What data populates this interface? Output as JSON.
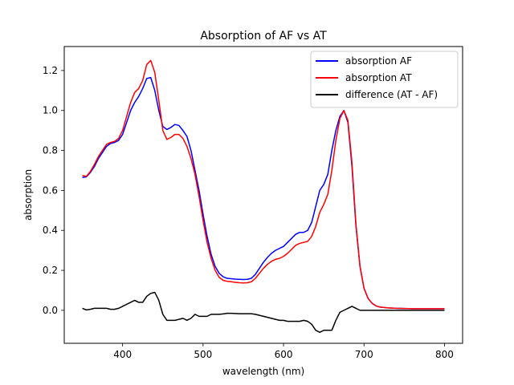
{
  "chart_data": {
    "type": "line",
    "title": "Absorption of AF vs AT",
    "xlabel": "wavelength (nm)",
    "ylabel": "absorption",
    "xlim": [
      327.5,
      822.5
    ],
    "ylim": [
      -0.165,
      1.32
    ],
    "xticks": [
      400,
      500,
      600,
      700,
      800
    ],
    "yticks": [
      0.0,
      0.2,
      0.4,
      0.6,
      0.8,
      1.0,
      1.2
    ],
    "xtick_labels": [
      "400",
      "500",
      "600",
      "700",
      "800"
    ],
    "ytick_labels": [
      "0.0",
      "0.2",
      "0.4",
      "0.6",
      "0.8",
      "1.0",
      "1.2"
    ],
    "grid": false,
    "legend_position": "top-right",
    "series": [
      {
        "name": "absorption AF",
        "color": "#0000ff",
        "x": [
          350,
          355,
          360,
          365,
          370,
          375,
          380,
          385,
          390,
          395,
          400,
          405,
          410,
          415,
          420,
          425,
          430,
          435,
          440,
          445,
          450,
          455,
          460,
          465,
          470,
          475,
          480,
          485,
          490,
          495,
          500,
          505,
          510,
          515,
          520,
          525,
          530,
          535,
          540,
          545,
          550,
          555,
          560,
          565,
          570,
          575,
          580,
          585,
          590,
          595,
          600,
          605,
          610,
          615,
          620,
          625,
          630,
          635,
          640,
          645,
          650,
          655,
          660,
          665,
          670,
          675,
          680,
          685,
          690,
          695,
          700,
          705,
          710,
          715,
          720,
          730,
          740,
          750,
          760,
          770,
          780,
          790,
          800
        ],
        "y": [
          0.665,
          0.668,
          0.69,
          0.72,
          0.76,
          0.79,
          0.82,
          0.835,
          0.84,
          0.85,
          0.88,
          0.94,
          1.0,
          1.04,
          1.07,
          1.11,
          1.16,
          1.165,
          1.1,
          1.0,
          0.92,
          0.905,
          0.915,
          0.93,
          0.925,
          0.9,
          0.87,
          0.8,
          0.7,
          0.6,
          0.48,
          0.37,
          0.28,
          0.22,
          0.185,
          0.168,
          0.16,
          0.158,
          0.156,
          0.155,
          0.154,
          0.155,
          0.16,
          0.18,
          0.21,
          0.24,
          0.265,
          0.285,
          0.3,
          0.31,
          0.32,
          0.34,
          0.36,
          0.38,
          0.39,
          0.39,
          0.4,
          0.44,
          0.52,
          0.6,
          0.63,
          0.68,
          0.8,
          0.9,
          0.97,
          1.0,
          0.94,
          0.72,
          0.42,
          0.22,
          0.11,
          0.06,
          0.035,
          0.022,
          0.016,
          0.012,
          0.01,
          0.009,
          0.008,
          0.008,
          0.008,
          0.008,
          0.008
        ]
      },
      {
        "name": "absorption AT",
        "color": "#ff0000",
        "x": [
          350,
          355,
          360,
          365,
          370,
          375,
          380,
          385,
          390,
          395,
          400,
          405,
          410,
          415,
          420,
          425,
          430,
          435,
          440,
          445,
          450,
          455,
          460,
          465,
          470,
          475,
          480,
          485,
          490,
          495,
          500,
          505,
          510,
          515,
          520,
          525,
          530,
          535,
          540,
          545,
          550,
          555,
          560,
          565,
          570,
          575,
          580,
          585,
          590,
          595,
          600,
          605,
          610,
          615,
          620,
          625,
          630,
          635,
          640,
          645,
          650,
          655,
          660,
          665,
          670,
          675,
          680,
          685,
          690,
          695,
          700,
          705,
          710,
          715,
          720,
          730,
          740,
          750,
          760,
          770,
          780,
          790,
          800
        ],
        "y": [
          0.675,
          0.67,
          0.695,
          0.73,
          0.77,
          0.8,
          0.83,
          0.84,
          0.845,
          0.86,
          0.9,
          0.97,
          1.04,
          1.09,
          1.11,
          1.15,
          1.23,
          1.25,
          1.19,
          1.05,
          0.9,
          0.855,
          0.865,
          0.88,
          0.88,
          0.86,
          0.82,
          0.76,
          0.68,
          0.57,
          0.45,
          0.34,
          0.26,
          0.2,
          0.165,
          0.15,
          0.145,
          0.143,
          0.14,
          0.138,
          0.137,
          0.138,
          0.143,
          0.16,
          0.185,
          0.21,
          0.23,
          0.245,
          0.255,
          0.26,
          0.27,
          0.285,
          0.305,
          0.325,
          0.335,
          0.34,
          0.345,
          0.37,
          0.42,
          0.49,
          0.53,
          0.58,
          0.7,
          0.85,
          0.96,
          1.0,
          0.95,
          0.74,
          0.43,
          0.22,
          0.11,
          0.06,
          0.035,
          0.022,
          0.016,
          0.012,
          0.01,
          0.009,
          0.008,
          0.008,
          0.008,
          0.008,
          0.008
        ]
      },
      {
        "name": "difference (AT - AF)",
        "color": "#000000",
        "x": [
          350,
          355,
          360,
          365,
          370,
          375,
          380,
          385,
          390,
          395,
          400,
          405,
          410,
          415,
          420,
          425,
          430,
          435,
          440,
          445,
          450,
          455,
          460,
          465,
          470,
          475,
          480,
          485,
          490,
          495,
          500,
          505,
          510,
          515,
          520,
          525,
          530,
          535,
          540,
          545,
          550,
          555,
          560,
          565,
          570,
          575,
          580,
          585,
          590,
          595,
          600,
          605,
          610,
          615,
          620,
          625,
          630,
          635,
          640,
          645,
          650,
          655,
          660,
          665,
          670,
          675,
          680,
          685,
          690,
          695,
          700,
          705,
          710,
          715,
          720,
          730,
          740,
          750,
          760,
          770,
          780,
          790,
          800
        ],
        "y": [
          0.01,
          0.002,
          0.005,
          0.01,
          0.01,
          0.01,
          0.01,
          0.005,
          0.005,
          0.01,
          0.02,
          0.03,
          0.04,
          0.05,
          0.04,
          0.04,
          0.07,
          0.085,
          0.09,
          0.05,
          -0.02,
          -0.05,
          -0.05,
          -0.05,
          -0.045,
          -0.04,
          -0.05,
          -0.04,
          -0.02,
          -0.03,
          -0.03,
          -0.03,
          -0.02,
          -0.02,
          -0.02,
          -0.018,
          -0.015,
          -0.015,
          -0.016,
          -0.017,
          -0.017,
          -0.017,
          -0.017,
          -0.02,
          -0.025,
          -0.03,
          -0.035,
          -0.04,
          -0.045,
          -0.05,
          -0.05,
          -0.055,
          -0.055,
          -0.055,
          -0.055,
          -0.05,
          -0.055,
          -0.07,
          -0.1,
          -0.11,
          -0.1,
          -0.1,
          -0.1,
          -0.05,
          -0.01,
          0.0,
          0.01,
          0.02,
          0.01,
          0.0,
          0.0,
          0.0,
          0.0,
          0.0,
          0.0,
          0.0,
          0.0,
          0.0,
          0.0,
          0.0,
          0.0,
          0.0,
          0.0
        ]
      }
    ]
  }
}
